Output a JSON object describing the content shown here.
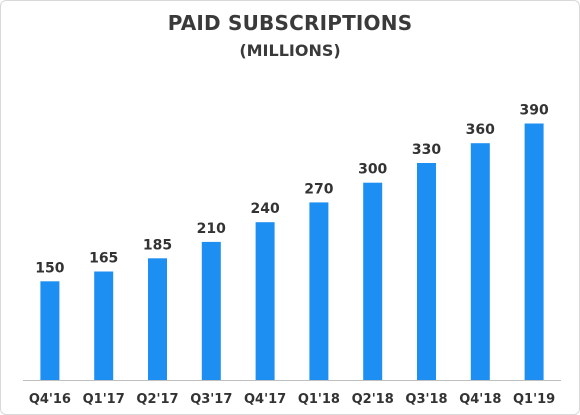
{
  "chart_data": {
    "type": "bar",
    "title": "PAID SUBSCRIPTIONS",
    "subtitle": "(MILLIONS)",
    "xlabel": "",
    "ylabel": "",
    "categories": [
      "Q4'16",
      "Q1'17",
      "Q2'17",
      "Q3'17",
      "Q4'17",
      "Q1'18",
      "Q2'18",
      "Q3'18",
      "Q4'18",
      "Q1'19"
    ],
    "values": [
      150,
      165,
      185,
      210,
      240,
      270,
      300,
      330,
      360,
      390
    ],
    "data_labels": [
      "150",
      "165",
      "185",
      "210",
      "240",
      "270",
      "300",
      "330",
      "360",
      "390"
    ],
    "ylim": [
      0,
      400
    ],
    "grid": false,
    "legend": "none",
    "bar_color": "#1e8ff2"
  }
}
